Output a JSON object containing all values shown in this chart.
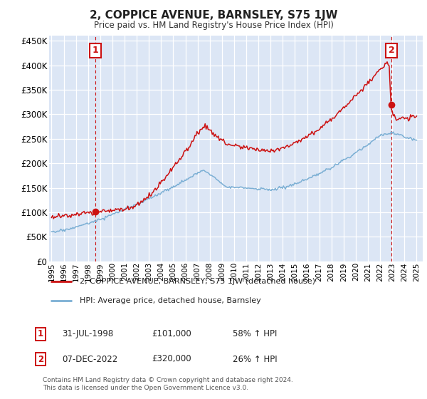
{
  "title": "2, COPPICE AVENUE, BARNSLEY, S75 1JW",
  "subtitle": "Price paid vs. HM Land Registry's House Price Index (HPI)",
  "xlim": [
    1994.8,
    2025.5
  ],
  "ylim": [
    0,
    460000
  ],
  "yticks": [
    0,
    50000,
    100000,
    150000,
    200000,
    250000,
    300000,
    350000,
    400000,
    450000
  ],
  "ytick_labels": [
    "£0",
    "£50K",
    "£100K",
    "£150K",
    "£200K",
    "£250K",
    "£300K",
    "£350K",
    "£400K",
    "£450K"
  ],
  "xtick_years": [
    1995,
    1996,
    1997,
    1998,
    1999,
    2000,
    2001,
    2002,
    2003,
    2004,
    2005,
    2006,
    2007,
    2008,
    2009,
    2010,
    2011,
    2012,
    2013,
    2014,
    2015,
    2016,
    2017,
    2018,
    2019,
    2020,
    2021,
    2022,
    2023,
    2024,
    2025
  ],
  "sale1_x": 1998.58,
  "sale1_y": 101000,
  "sale2_x": 2022.92,
  "sale2_y": 320000,
  "hpi_color": "#7bafd4",
  "price_color": "#cc1111",
  "background_color": "#dce6f5",
  "grid_color": "#ffffff",
  "legend_label_price": "2, COPPICE AVENUE, BARNSLEY, S75 1JW (detached house)",
  "legend_label_hpi": "HPI: Average price, detached house, Barnsley",
  "sale1_date": "31-JUL-1998",
  "sale1_price": "£101,000",
  "sale1_hpi": "58% ↑ HPI",
  "sale2_date": "07-DEC-2022",
  "sale2_price": "£320,000",
  "sale2_hpi": "26% ↑ HPI",
  "footer": "Contains HM Land Registry data © Crown copyright and database right 2024.\nThis data is licensed under the Open Government Licence v3.0."
}
